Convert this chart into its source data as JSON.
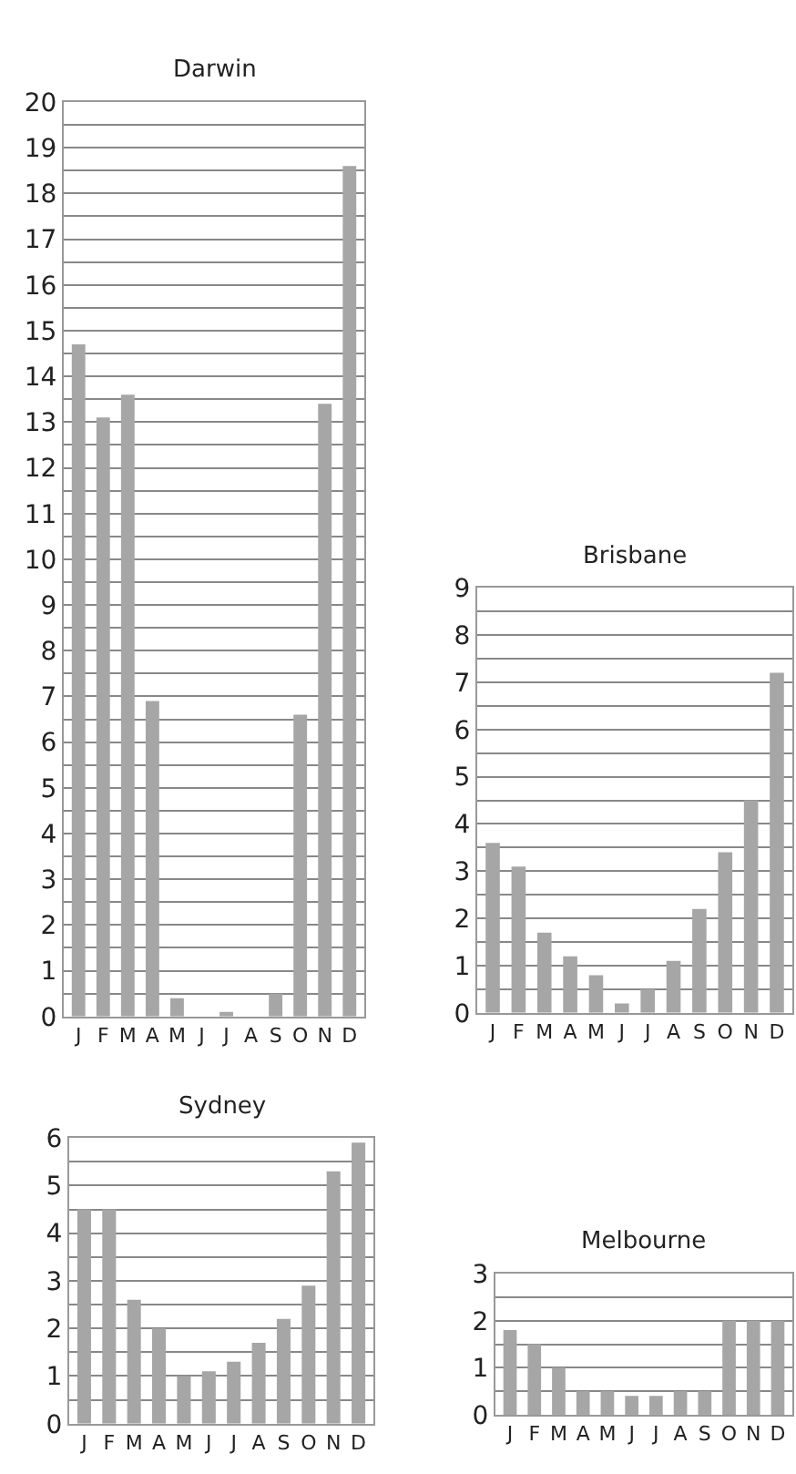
{
  "chart_data": [
    {
      "type": "bar",
      "title": "Darwin",
      "categories": [
        "J",
        "F",
        "M",
        "A",
        "M",
        "J",
        "J",
        "A",
        "S",
        "O",
        "N",
        "D"
      ],
      "values": [
        14.7,
        13.1,
        13.6,
        6.9,
        0.4,
        0,
        0.1,
        0,
        0.5,
        6.6,
        13.4,
        18.6
      ],
      "color": "#a6a6a6",
      "ylim": [
        0,
        20
      ],
      "yticks": [
        0,
        {
          "value": 0.5,
          "label": null
        },
        1,
        {
          "value": 1.5,
          "label": null
        },
        2,
        {
          "value": 2.5,
          "label": null
        },
        3,
        {
          "value": 3.5,
          "label": null
        },
        4,
        {
          "value": 4.5,
          "label": null
        },
        5,
        {
          "value": 5.5,
          "label": null
        },
        6,
        {
          "value": 6.5,
          "label": null
        },
        7,
        {
          "value": 7.5,
          "label": null
        },
        8,
        {
          "value": 8.5,
          "label": null
        },
        9,
        {
          "value": 9.5,
          "label": null
        },
        10,
        {
          "value": 10.5,
          "label": null
        },
        11,
        {
          "value": 11.5,
          "label": null
        },
        12,
        {
          "value": 12.5,
          "label": null
        },
        13,
        {
          "value": 13.5,
          "label": null
        },
        14,
        {
          "value": 14.5,
          "label": null
        },
        15,
        {
          "value": 15.5,
          "label": null
        },
        16,
        {
          "value": 16.5,
          "label": null
        },
        17,
        {
          "value": 17.5,
          "label": null
        },
        18,
        {
          "value": 18.5,
          "label": null
        },
        19,
        {
          "value": 19.5,
          "label": null
        },
        20
      ],
      "grid": "y"
    },
    {
      "type": "bar",
      "title": "Brisbane",
      "categories": [
        "J",
        "F",
        "M",
        "A",
        "M",
        "J",
        "J",
        "A",
        "S",
        "O",
        "N",
        "D"
      ],
      "values": [
        3.6,
        3.1,
        1.7,
        1.2,
        0.8,
        0.2,
        0.5,
        1.1,
        2.2,
        3.4,
        4.5,
        7.2
      ],
      "color": "#a6a6a6",
      "ylim": [
        0,
        9
      ],
      "yticks": [
        0,
        {
          "value": 0.5,
          "label": null
        },
        1,
        {
          "value": 1.5,
          "label": null
        },
        2,
        {
          "value": 2.5,
          "label": null
        },
        3,
        {
          "value": 3.5,
          "label": null
        },
        4,
        {
          "value": 4.5,
          "label": null
        },
        5,
        {
          "value": 5.5,
          "label": null
        },
        6,
        {
          "value": 6.5,
          "label": null
        },
        7,
        {
          "value": 7.5,
          "label": null
        },
        8,
        {
          "value": 8.5,
          "label": null
        },
        9
      ],
      "grid": "y"
    },
    {
      "type": "bar",
      "title": "Sydney",
      "categories": [
        "J",
        "F",
        "M",
        "A",
        "M",
        "J",
        "J",
        "A",
        "S",
        "O",
        "N",
        "D"
      ],
      "values": [
        4.5,
        4.5,
        2.6,
        2.0,
        1.0,
        1.1,
        1.3,
        1.7,
        2.2,
        2.9,
        5.3,
        5.9
      ],
      "color": "#a6a6a6",
      "ylim": [
        0,
        6
      ],
      "yticks": [
        0,
        {
          "value": 0.5,
          "label": null
        },
        1,
        {
          "value": 1.5,
          "label": null
        },
        2,
        {
          "value": 2.5,
          "label": null
        },
        3,
        {
          "value": 3.5,
          "label": null
        },
        4,
        {
          "value": 4.5,
          "label": null
        },
        5,
        {
          "value": 5.5,
          "label": null
        },
        6
      ],
      "grid": "y"
    },
    {
      "type": "bar",
      "title": "Melbourne",
      "categories": [
        "J",
        "F",
        "M",
        "A",
        "M",
        "J",
        "J",
        "A",
        "S",
        "O",
        "N",
        "D"
      ],
      "values": [
        1.8,
        1.5,
        1.0,
        0.5,
        0.5,
        0.4,
        0.4,
        0.5,
        0.5,
        2.0,
        2.0,
        2.0
      ],
      "color": "#a6a6a6",
      "ylim": [
        0,
        3
      ],
      "yticks": [
        0,
        {
          "value": 0.5,
          "label": null
        },
        1,
        {
          "value": 1.5,
          "label": null
        },
        2,
        {
          "value": 2.5,
          "label": null
        },
        3
      ],
      "grid": "y"
    }
  ]
}
